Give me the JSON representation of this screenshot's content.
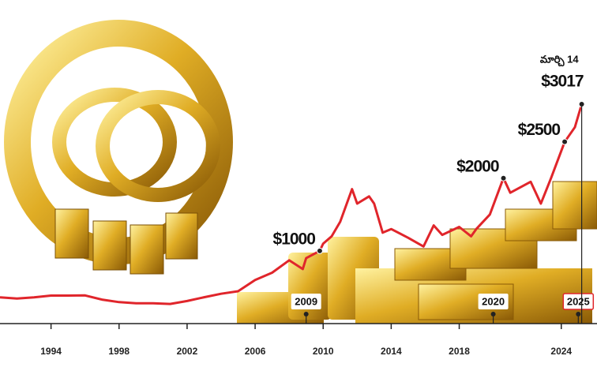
{
  "chart_data": {
    "type": "line",
    "x": [
      1991,
      1992,
      1993,
      1994,
      1995,
      1996,
      1997,
      1998,
      1999,
      2000,
      2001,
      2002,
      2003,
      2004,
      2005,
      2006,
      2007,
      2008,
      2008.8,
      2009,
      2009.8,
      2010,
      2010.5,
      2011,
      2011.7,
      2012,
      2012.7,
      2013,
      2013.5,
      2014,
      2015,
      2015.9,
      2016.5,
      2017,
      2018,
      2018.7,
      2019,
      2019.8,
      2020.6,
      2021,
      2022.2,
      2022.8,
      2023.4,
      2024.2,
      2024.8,
      2025.2
    ],
    "series": [
      {
        "color": "#e0252b",
        "values": [
          360,
          345,
          360,
          385,
          385,
          388,
          330,
          295,
          280,
          280,
          270,
          310,
          363,
          410,
          445,
          600,
          700,
          870,
          750,
          900,
          1000,
          1100,
          1200,
          1400,
          1850,
          1650,
          1750,
          1650,
          1250,
          1300,
          1180,
          1060,
          1350,
          1220,
          1330,
          1200,
          1300,
          1500,
          2000,
          1800,
          1950,
          1650,
          2000,
          2500,
          2700,
          3017
        ]
      }
    ],
    "xlim": [
      1991,
      2026.1
    ],
    "ylim": [
      0,
      4450
    ],
    "xticks": [
      1994,
      1998,
      2002,
      2006,
      2010,
      2014,
      2018,
      2024
    ],
    "annotations": [
      {
        "label": "$1000",
        "x": 2009.8,
        "y": 1000
      },
      {
        "label": "$2000",
        "x": 2020.6,
        "y": 2000
      },
      {
        "label": "$2500",
        "x": 2024.2,
        "y": 2500
      },
      {
        "label": "$3017",
        "date": "మార్చి 14",
        "x": 2025.2,
        "y": 3017
      }
    ],
    "markers": [
      2009,
      2020,
      2025
    ]
  }
}
